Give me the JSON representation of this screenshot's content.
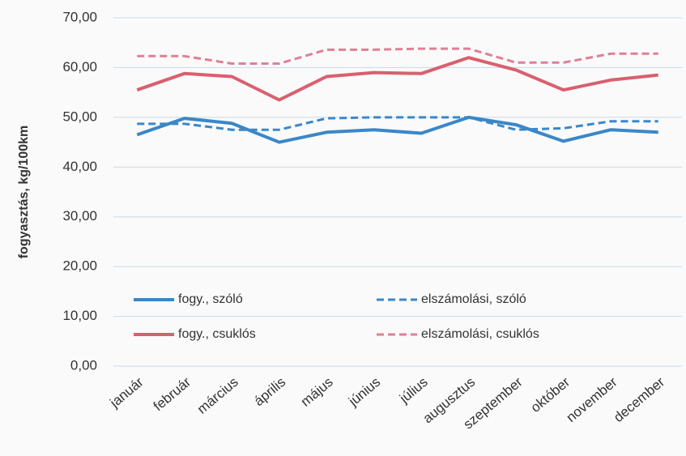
{
  "chart_data": {
    "type": "line",
    "y_label": "fogyasztás, kg/100km",
    "categories": [
      "január",
      "február",
      "március",
      "április",
      "május",
      "június",
      "július",
      "augusztus",
      "szeptember",
      "október",
      "november",
      "december"
    ],
    "series": [
      {
        "name": "fogy., szóló",
        "color": "#3a87c8",
        "dashed": false,
        "values": [
          46.5,
          49.8,
          48.8,
          45.0,
          47.0,
          47.5,
          46.8,
          50.0,
          48.5,
          45.2,
          47.5,
          47.0
        ]
      },
      {
        "name": "elszámolási, szóló",
        "color": "#3a87c8",
        "dashed": true,
        "values": [
          48.7,
          48.7,
          47.5,
          47.5,
          49.8,
          50.0,
          50.0,
          50.0,
          47.5,
          47.8,
          49.2,
          49.2
        ]
      },
      {
        "name": "fogy., csuklós",
        "color": "#d9606e",
        "dashed": false,
        "values": [
          55.5,
          58.8,
          58.2,
          53.5,
          58.2,
          59.0,
          58.8,
          62.0,
          59.5,
          55.5,
          57.5,
          58.5
        ]
      },
      {
        "name": "elszámolási, csuklós",
        "color": "#e07f95",
        "dashed": true,
        "values": [
          62.3,
          62.3,
          60.8,
          60.8,
          63.6,
          63.6,
          63.8,
          63.8,
          61.0,
          61.0,
          62.8,
          62.8
        ]
      }
    ],
    "ylim": [
      0,
      70
    ],
    "yticks": [
      {
        "value": 0,
        "label": "0,00"
      },
      {
        "value": 10,
        "label": "10,00"
      },
      {
        "value": 20,
        "label": "20,00"
      },
      {
        "value": 30,
        "label": "30,00"
      },
      {
        "value": 40,
        "label": "40,00"
      },
      {
        "value": 50,
        "label": "50,00"
      },
      {
        "value": 60,
        "label": "60,00"
      },
      {
        "value": 70,
        "label": "70,00"
      }
    ],
    "grid": true
  }
}
